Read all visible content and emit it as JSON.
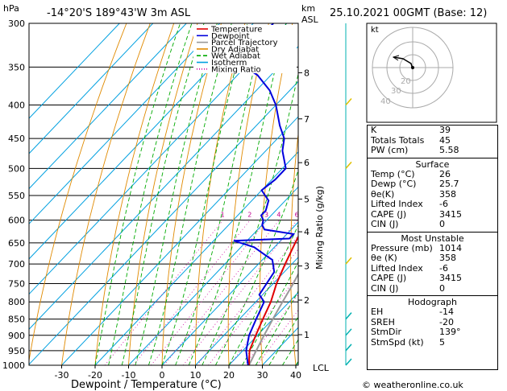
{
  "header": {
    "hpa_unit": "hPa",
    "location": "-14°20'S  189°43'W  3m ASL",
    "km_unit_1": "km",
    "km_unit_2": "ASL",
    "datetime": "25.10.2021  00GMT  (Base: 12)"
  },
  "chart_data": {
    "type": "skew-t",
    "xlabel": "Dewpoint / Temperature (°C)",
    "ylabel_right": "Mixing Ratio (g/kg)",
    "pressure_levels": [
      300,
      350,
      400,
      450,
      500,
      550,
      600,
      650,
      700,
      750,
      800,
      850,
      900,
      950,
      1000
    ],
    "temperature_ticks": [
      -30,
      -20,
      -10,
      0,
      10,
      20,
      30,
      40
    ],
    "km_ticks": [
      {
        "km": "8",
        "p": 357
      },
      {
        "km": "7",
        "p": 420
      },
      {
        "km": "6",
        "p": 490
      },
      {
        "km": "5",
        "p": 557
      },
      {
        "km": "4",
        "p": 625
      },
      {
        "km": "3",
        "p": 705
      },
      {
        "km": "2",
        "p": 795
      },
      {
        "km": "1",
        "p": 898
      }
    ],
    "lcl_label": "LCL",
    "mixing_ratio_labels": [
      "1",
      "2",
      "3",
      "4",
      "6",
      "8",
      "10",
      "15",
      "20",
      "25"
    ],
    "legend": [
      "Temperature",
      "Dewpoint",
      "Parcel Trajectory",
      "Dry Adiabat",
      "Wet Adiabat",
      "Isotherm",
      "Mixing Ratio"
    ],
    "colors": {
      "temperature": "#e00000",
      "dewpoint": "#0000dd",
      "parcel": "#999999",
      "dry_adiabat": "#e08a00",
      "wet_adiabat": "#00aa00",
      "isotherm": "#00a0e0",
      "mixing_ratio": "#d000a0"
    },
    "temperature_profile": [
      {
        "p": 1000,
        "t": 26
      },
      {
        "p": 950,
        "t": 22
      },
      {
        "p": 900,
        "t": 19.5
      },
      {
        "p": 850,
        "t": 17
      },
      {
        "p": 800,
        "t": 14.5
      },
      {
        "p": 750,
        "t": 11
      },
      {
        "p": 700,
        "t": 8
      },
      {
        "p": 650,
        "t": 5
      },
      {
        "p": 600,
        "t": 2
      },
      {
        "p": 560,
        "t": -1.5
      },
      {
        "p": 520,
        "t": -3
      },
      {
        "p": 500,
        "t": -5
      },
      {
        "p": 450,
        "t": -10
      },
      {
        "p": 400,
        "t": -16
      },
      {
        "p": 370,
        "t": -21
      },
      {
        "p": 350,
        "t": -24
      },
      {
        "p": 320,
        "t": -30
      },
      {
        "p": 300,
        "t": -34
      }
    ],
    "dewpoint_profile": [
      {
        "p": 1000,
        "t": 25.7
      },
      {
        "p": 950,
        "t": 21
      },
      {
        "p": 900,
        "t": 17.5
      },
      {
        "p": 850,
        "t": 15
      },
      {
        "p": 800,
        "t": 12.5
      },
      {
        "p": 780,
        "t": 9
      },
      {
        "p": 720,
        "t": 7
      },
      {
        "p": 690,
        "t": 3
      },
      {
        "p": 680,
        "t": 0
      },
      {
        "p": 660,
        "t": -6
      },
      {
        "p": 645,
        "t": -14
      },
      {
        "p": 640,
        "t": 2
      },
      {
        "p": 630,
        "t": 2
      },
      {
        "p": 620,
        "t": -8
      },
      {
        "p": 610,
        "t": -10
      },
      {
        "p": 600,
        "t": -11
      },
      {
        "p": 590,
        "t": -13
      },
      {
        "p": 580,
        "t": -13
      },
      {
        "p": 560,
        "t": -15
      },
      {
        "p": 540,
        "t": -20
      },
      {
        "p": 520,
        "t": -19
      },
      {
        "p": 500,
        "t": -19
      },
      {
        "p": 470,
        "t": -25
      },
      {
        "p": 450,
        "t": -28
      },
      {
        "p": 430,
        "t": -33
      },
      {
        "p": 400,
        "t": -40
      },
      {
        "p": 380,
        "t": -46
      },
      {
        "p": 360,
        "t": -54
      },
      {
        "p": 350,
        "t": -60
      },
      {
        "p": 320,
        "t": -64
      },
      {
        "p": 300,
        "t": -64
      }
    ],
    "parcel_profile": [
      {
        "p": 1000,
        "t": 26
      },
      {
        "p": 950,
        "t": 24
      },
      {
        "p": 900,
        "t": 22
      },
      {
        "p": 850,
        "t": 20
      },
      {
        "p": 800,
        "t": 18
      },
      {
        "p": 750,
        "t": 16
      },
      {
        "p": 700,
        "t": 13.5
      },
      {
        "p": 650,
        "t": 11
      },
      {
        "p": 600,
        "t": 8
      },
      {
        "p": 550,
        "t": 4.5
      },
      {
        "p": 500,
        "t": 1
      },
      {
        "p": 450,
        "t": -4
      },
      {
        "p": 400,
        "t": -10
      },
      {
        "p": 350,
        "t": -18
      },
      {
        "p": 300,
        "t": -27
      }
    ]
  },
  "hodograph": {
    "unit_label": "kt",
    "ring_labels": [
      "20",
      "30",
      "40"
    ]
  },
  "indices": {
    "top": [
      {
        "label": "K",
        "value": "39"
      },
      {
        "label": "Totals Totals",
        "value": "45"
      },
      {
        "label": "PW (cm)",
        "value": "5.58"
      }
    ],
    "surface": {
      "title": "Surface",
      "rows": [
        {
          "label": "Temp (°C)",
          "value": "26"
        },
        {
          "label": "Dewp (°C)",
          "value": "25.7"
        },
        {
          "label": "θe(K)",
          "value": "358"
        },
        {
          "label": "Lifted Index",
          "value": "-6"
        },
        {
          "label": "CAPE (J)",
          "value": "3415"
        },
        {
          "label": "CIN (J)",
          "value": "0"
        }
      ]
    },
    "unstable": {
      "title": "Most Unstable",
      "rows": [
        {
          "label": "Pressure (mb)",
          "value": "1014"
        },
        {
          "label": "θe (K)",
          "value": "358"
        },
        {
          "label": "Lifted Index",
          "value": "-6"
        },
        {
          "label": "CAPE (J)",
          "value": "3415"
        },
        {
          "label": "CIN (J)",
          "value": "0"
        }
      ]
    },
    "hodo": {
      "title": "Hodograph",
      "rows": [
        {
          "label": "EH",
          "value": "-14"
        },
        {
          "label": "SREH",
          "value": "-20"
        },
        {
          "label": "StmDir",
          "value": "139°"
        },
        {
          "label": "StmSpd (kt)",
          "value": "5"
        }
      ]
    }
  },
  "footer": {
    "copyright": "© weatheronline.co.uk"
  }
}
